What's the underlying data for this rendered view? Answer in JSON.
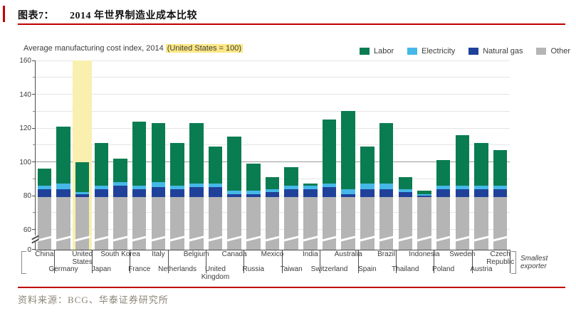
{
  "header": {
    "caption_label": "图表7：",
    "caption_title": "2014 年世界制造业成本比较"
  },
  "chart": {
    "subtitle_plain": "Average manufacturing cost index, 2014",
    "subtitle_highlight": "(United States = 100)",
    "axis_note_line1": "Smallest",
    "axis_note_line2": "exporter"
  },
  "chart_data": {
    "type": "bar",
    "stacked": true,
    "title": "Average manufacturing cost index, 2014 (United States = 100)",
    "categories": [
      "China",
      "Germany",
      "United States",
      "Japan",
      "South Korea",
      "France",
      "Italy",
      "Netherlands",
      "Belgium",
      "United Kingdom",
      "Canada",
      "Russia",
      "Mexico",
      "Taiwan",
      "India",
      "Switzerland",
      "Australia",
      "Spain",
      "Brazil",
      "Thailand",
      "Indonesia",
      "Poland",
      "Sweden",
      "Austria",
      "Czech Republic"
    ],
    "series": [
      {
        "name": "Other",
        "color": "#b5b5b5",
        "values": [
          79,
          79,
          79,
          79,
          79,
          79,
          79,
          79,
          79,
          79,
          79,
          79,
          79,
          79,
          79,
          79,
          79,
          79,
          79,
          79,
          79,
          79,
          79,
          79,
          79
        ]
      },
      {
        "name": "Natural gas",
        "color": "#20419a",
        "values": [
          5,
          5,
          2,
          5,
          7,
          5,
          6,
          5,
          6,
          6,
          2,
          2,
          3,
          5,
          5,
          6,
          2,
          5,
          5,
          3,
          1,
          5,
          5,
          5,
          5
        ]
      },
      {
        "name": "Electricity",
        "color": "#45b8e8",
        "values": [
          2,
          3,
          1,
          2,
          2,
          2,
          3,
          2,
          2,
          2,
          2,
          2,
          2,
          2,
          2,
          2,
          3,
          3,
          3,
          2,
          1,
          2,
          2,
          2,
          2
        ]
      },
      {
        "name": "Labor",
        "color": "#0a7c51",
        "values": [
          10,
          34,
          18,
          25,
          14,
          38,
          35,
          25,
          36,
          22,
          32,
          16,
          7,
          11,
          1,
          38,
          46,
          22,
          36,
          7,
          2,
          15,
          30,
          25,
          21
        ]
      }
    ],
    "totals": [
      96,
      121,
      100,
      111,
      102,
      124,
      123,
      111,
      123,
      109,
      115,
      99,
      91,
      97,
      87,
      125,
      130,
      109,
      123,
      91,
      83,
      101,
      116,
      111,
      107
    ],
    "highlighted_category": "United States",
    "highlight_band_color": "#f9efaf",
    "legend_order": [
      "Labor",
      "Electricity",
      "Natural gas",
      "Other"
    ],
    "y_ticks_labeled": [
      0,
      60,
      80,
      100,
      120,
      140,
      160
    ],
    "gridlines_every": 10,
    "ylim": [
      0,
      160
    ],
    "y_axis_break_between": [
      0,
      60
    ],
    "legend_position": "top-right",
    "xlabel": "",
    "ylabel": ""
  },
  "footer": {
    "source": "资料来源：BCG、华泰证券研究所"
  }
}
